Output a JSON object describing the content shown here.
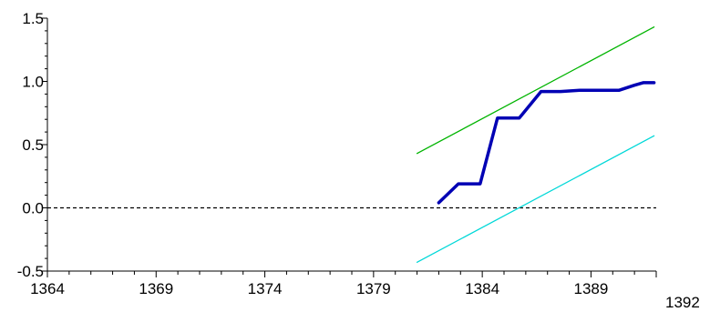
{
  "chart_data": {
    "type": "line",
    "title": "",
    "xlabel": "",
    "ylabel": "",
    "xlim": [
      1364,
      1392
    ],
    "ylim": [
      -0.5,
      1.5
    ],
    "x_ticks": [
      1364,
      1369,
      1374,
      1379,
      1384,
      1389,
      1392
    ],
    "x_tick_labels": [
      "1364",
      "1369",
      "1374",
      "1379",
      "1384",
      "1389",
      "1392"
    ],
    "y_ticks": [
      1.5,
      1.0,
      0.5,
      0.0,
      -0.5
    ],
    "y_tick_labels": [
      "1.5",
      "1.0",
      "0.5",
      "0.0",
      "-0.5"
    ],
    "grid": false,
    "legend": "none",
    "reference_line": {
      "y": 0.0,
      "style": "dashed",
      "color": "#000000"
    },
    "series": [
      {
        "color": "#00b400",
        "points": [
          [
            1381,
            0.43
          ],
          [
            1391.9,
            1.43
          ]
        ]
      },
      {
        "color": "#0000b4",
        "points": [
          [
            1382,
            0.04
          ],
          [
            1382.9,
            0.19
          ],
          [
            1383.9,
            0.19
          ],
          [
            1384.7,
            0.71
          ],
          [
            1385.7,
            0.71
          ],
          [
            1386.7,
            0.92
          ],
          [
            1387.6,
            0.92
          ],
          [
            1388.5,
            0.93
          ],
          [
            1389.5,
            0.93
          ],
          [
            1390.3,
            0.93
          ],
          [
            1391,
            0.97
          ],
          [
            1391.4,
            0.99
          ],
          [
            1391.9,
            0.99
          ]
        ]
      },
      {
        "color": "#00d8d8",
        "points": [
          [
            1381,
            -0.43
          ],
          [
            1391.9,
            0.57
          ]
        ]
      }
    ]
  }
}
